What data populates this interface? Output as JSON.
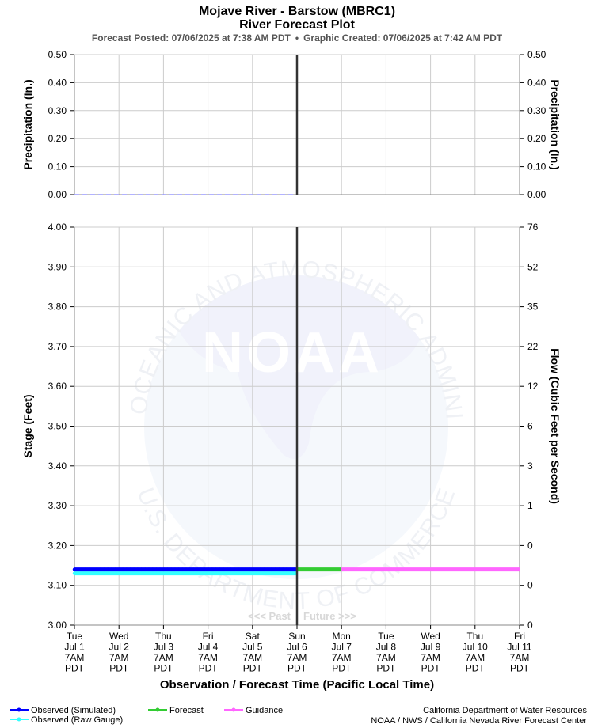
{
  "header": {
    "title": "Mojave River - Barstow (MBRC1)",
    "subtitle": "River Forecast Plot",
    "posted": "Forecast Posted: 07/06/2025 at 7:38 AM PDT",
    "bullet": "•",
    "created": "Graphic Created: 07/06/2025 at 7:42 AM PDT"
  },
  "watermark": {
    "logo_text": "NOAA",
    "ring_text_top": "NATIONAL OCEANIC AND ATMOSPHERIC ADMINISTRATION",
    "ring_text_bottom": "U.S. DEPARTMENT OF COMMERCE"
  },
  "colors": {
    "observed_simulated": "#0000ff",
    "observed_raw": "#33ffff",
    "forecast": "#33cc33",
    "guidance": "#ff66ff",
    "precip_line": "#9999ff",
    "now_line": "#333333",
    "grid": "#cccccc"
  },
  "chart_data": [
    {
      "type": "line",
      "name": "precipitation",
      "ylabel_left": "Precipitation (In.)",
      "ylabel_right": "Precipitation (In.)",
      "ylim": [
        0,
        0.5
      ],
      "yticks": [
        "0.50",
        "0.40",
        "0.30",
        "0.20",
        "0.10",
        "0.00"
      ],
      "grid": true,
      "series": [
        {
          "key": "precip",
          "x": [
            "2025-07-01 07:00",
            "2025-07-06 07:00"
          ],
          "values": [
            0.0,
            0.0
          ]
        }
      ]
    },
    {
      "type": "line",
      "name": "stage",
      "ylabel_left": "Stage (Feet)",
      "ylabel_right": "Flow (Cubic Feet per Second)",
      "ylim": [
        3.0,
        4.0
      ],
      "yticks": [
        "4.00",
        "3.90",
        "3.80",
        "3.70",
        "3.60",
        "3.50",
        "3.40",
        "3.30",
        "3.20",
        "3.10",
        "3.00"
      ],
      "yticks_right": [
        "76",
        "52",
        "35",
        "22",
        "12",
        "6",
        "3",
        "1",
        "0",
        "0",
        "0"
      ],
      "xlabel": "Observation / Forecast Time (Pacific Local Time)",
      "x_tick_labels": [
        [
          "Tue",
          "Jul 1",
          "7AM",
          "PDT"
        ],
        [
          "Wed",
          "Jul 2",
          "7AM",
          "PDT"
        ],
        [
          "Thu",
          "Jul 3",
          "7AM",
          "PDT"
        ],
        [
          "Fri",
          "Jul 4",
          "7AM",
          "PDT"
        ],
        [
          "Sat",
          "Jul 5",
          "7AM",
          "PDT"
        ],
        [
          "Sun",
          "Jul 6",
          "7AM",
          "PDT"
        ],
        [
          "Mon",
          "Jul 7",
          "7AM",
          "PDT"
        ],
        [
          "Tue",
          "Jul 8",
          "7AM",
          "PDT"
        ],
        [
          "Wed",
          "Jul 9",
          "7AM",
          "PDT"
        ],
        [
          "Thu",
          "Jul 10",
          "7AM",
          "PDT"
        ],
        [
          "Fri",
          "Jul 11",
          "7AM",
          "PDT"
        ]
      ],
      "now": "2025-07-06 07:00",
      "past_label": "<<< Past",
      "future_label": "Future >>>",
      "grid": true,
      "series": [
        {
          "key": "observed_simulated",
          "name": "Observed (Simulated)",
          "x": [
            "2025-07-01 07:00",
            "2025-07-06 07:00"
          ],
          "values": [
            3.14,
            3.14
          ]
        },
        {
          "key": "observed_raw",
          "name": "Observed (Raw Gauge)",
          "x": [
            "2025-07-01 07:00",
            "2025-07-06 07:00"
          ],
          "values": [
            3.13,
            3.13
          ]
        },
        {
          "key": "forecast",
          "name": "Forecast",
          "x": [
            "2025-07-06 07:00",
            "2025-07-07 07:00"
          ],
          "values": [
            3.14,
            3.14
          ]
        },
        {
          "key": "guidance",
          "name": "Guidance",
          "x": [
            "2025-07-07 07:00",
            "2025-07-11 07:00"
          ],
          "values": [
            3.14,
            3.14
          ]
        }
      ]
    }
  ],
  "legend": [
    {
      "key": "observed_simulated",
      "label": "Observed (Simulated)"
    },
    {
      "key": "observed_raw",
      "label": "Observed (Raw Gauge)"
    },
    {
      "key": "forecast",
      "label": "Forecast"
    },
    {
      "key": "guidance",
      "label": "Guidance"
    }
  ],
  "footer": {
    "credit_1": "California Department of Water Resources",
    "credit_2": "NOAA / NWS / California Nevada River Forecast Center"
  }
}
